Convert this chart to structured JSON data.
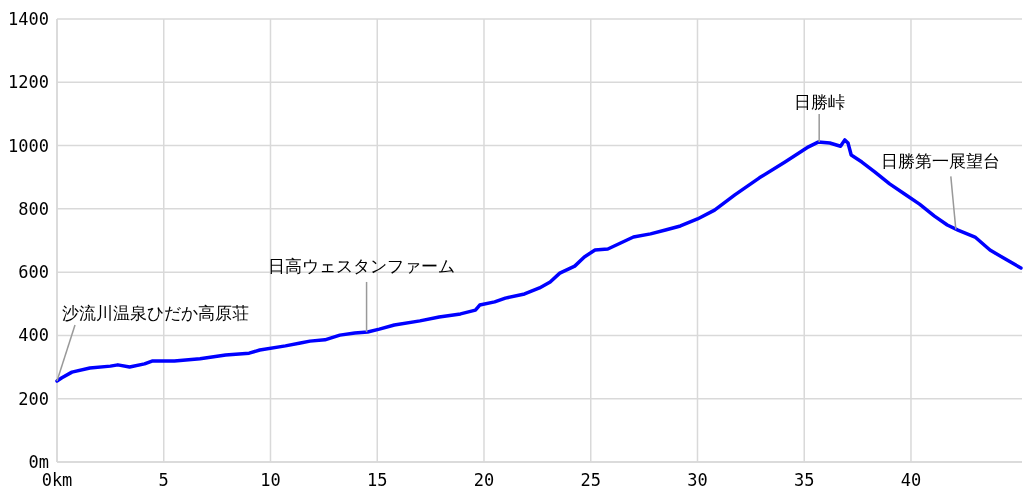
{
  "chart_data": {
    "type": "line",
    "xlim": [
      0,
      45.2
    ],
    "ylim": [
      0,
      1400
    ],
    "xticks": [
      {
        "value": 0,
        "label": "0km"
      },
      5,
      10,
      15,
      20,
      25,
      30,
      35,
      40
    ],
    "yticks": [
      {
        "value": 0,
        "label": "0m"
      },
      200,
      400,
      600,
      800,
      1000,
      1200,
      1400
    ],
    "grid": true,
    "marker": "none",
    "line_style": "solid",
    "series": [
      {
        "color": "#0000ff",
        "x": [
          0,
          0.23,
          0.7,
          1.54,
          2.5,
          2.85,
          3.4,
          4.1,
          4.45,
          5.5,
          6.7,
          7.9,
          9.0,
          9.5,
          10.7,
          11.4,
          11.85,
          12.55,
          13.25,
          13.95,
          14.55,
          15.1,
          15.8,
          17.0,
          17.9,
          18.9,
          19.6,
          19.8,
          20.5,
          21.0,
          21.9,
          22.6,
          23.1,
          23.55,
          24.25,
          24.7,
          25.2,
          25.8,
          26.4,
          27.0,
          27.8,
          28.5,
          29.2,
          30.0,
          30.8,
          31.75,
          32.9,
          34.1,
          35.2,
          35.65,
          36.2,
          36.7,
          36.9,
          37.05,
          37.2,
          37.7,
          38.3,
          39.0,
          39.7,
          40.4,
          41.1,
          41.7,
          42.2,
          43.0,
          43.7,
          44.4,
          45.15
        ],
        "values": [
          256,
          266,
          284,
          297,
          303,
          307,
          300,
          310,
          319,
          319,
          326,
          338,
          344,
          354,
          367,
          376,
          382,
          386,
          401,
          408,
          411,
          420,
          433,
          446,
          458,
          468,
          480,
          496,
          506,
          518,
          531,
          550,
          569,
          597,
          619,
          648,
          670,
          673,
          692,
          711,
          721,
          733,
          746,
          768,
          796,
          844,
          898,
          948,
          996,
          1011,
          1008,
          998,
          1018,
          1008,
          970,
          948,
          917,
          879,
          847,
          815,
          777,
          749,
          733,
          711,
          670,
          642,
          613
        ]
      }
    ],
    "annotations": [
      {
        "text": "沙流川温泉ひだか高原荘",
        "x": 0,
        "y": 256
      },
      {
        "text": "日高ウェスタンファーム",
        "x": 14.5,
        "y": 411
      },
      {
        "text": "日勝峠",
        "x": 35.7,
        "y": 1011
      },
      {
        "text": "日勝第一展望台",
        "x": 42.1,
        "y": 735
      }
    ]
  }
}
